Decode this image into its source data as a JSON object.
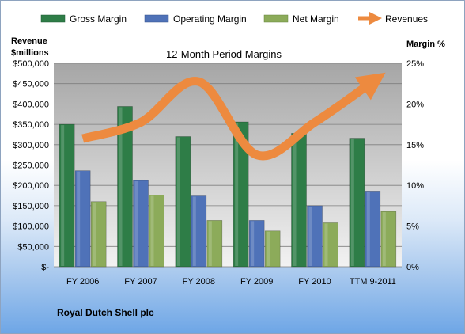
{
  "chart_data": {
    "type": "bar",
    "title": "12-Month Period Margins",
    "categories": [
      "FY 2006",
      "FY 2007",
      "FY 2008",
      "FY 2009",
      "FY 2010",
      "TTM 9-2011"
    ],
    "series": [
      {
        "name": "Gross Margin",
        "type": "bar",
        "axis": "right",
        "color": "#2e7d47",
        "values": [
          17.5,
          19.7,
          16.0,
          17.8,
          16.4,
          15.8
        ]
      },
      {
        "name": "Operating Margin",
        "type": "bar",
        "axis": "right",
        "color": "#4f72b8",
        "values": [
          11.8,
          10.6,
          8.7,
          5.7,
          7.5,
          9.3
        ]
      },
      {
        "name": "Net Margin",
        "type": "bar",
        "axis": "right",
        "color": "#8cab5a",
        "values": [
          8.0,
          8.8,
          5.7,
          4.4,
          5.4,
          6.8
        ]
      },
      {
        "name": "Revenues",
        "type": "line",
        "axis": "left",
        "color": "#ed8a3f",
        "values": [
          315000,
          355000,
          455000,
          275000,
          355000,
          455000
        ]
      }
    ],
    "y_left": {
      "label_line1": "Revenue",
      "label_line2": "$millions",
      "min": 0,
      "max": 500000,
      "step": 50000,
      "ticks": [
        "$-",
        "$50,000",
        "$100,000",
        "$150,000",
        "$200,000",
        "$250,000",
        "$300,000",
        "$350,000",
        "$400,000",
        "$450,000",
        "$500,000"
      ]
    },
    "y_right": {
      "label": "Margin %",
      "min": 0,
      "max": 25,
      "step": 5,
      "ticks": [
        "0%",
        "5%",
        "10%",
        "15%",
        "20%",
        "25%"
      ]
    },
    "grid": true,
    "legend_position": "top"
  },
  "company": "Royal Dutch Shell plc"
}
